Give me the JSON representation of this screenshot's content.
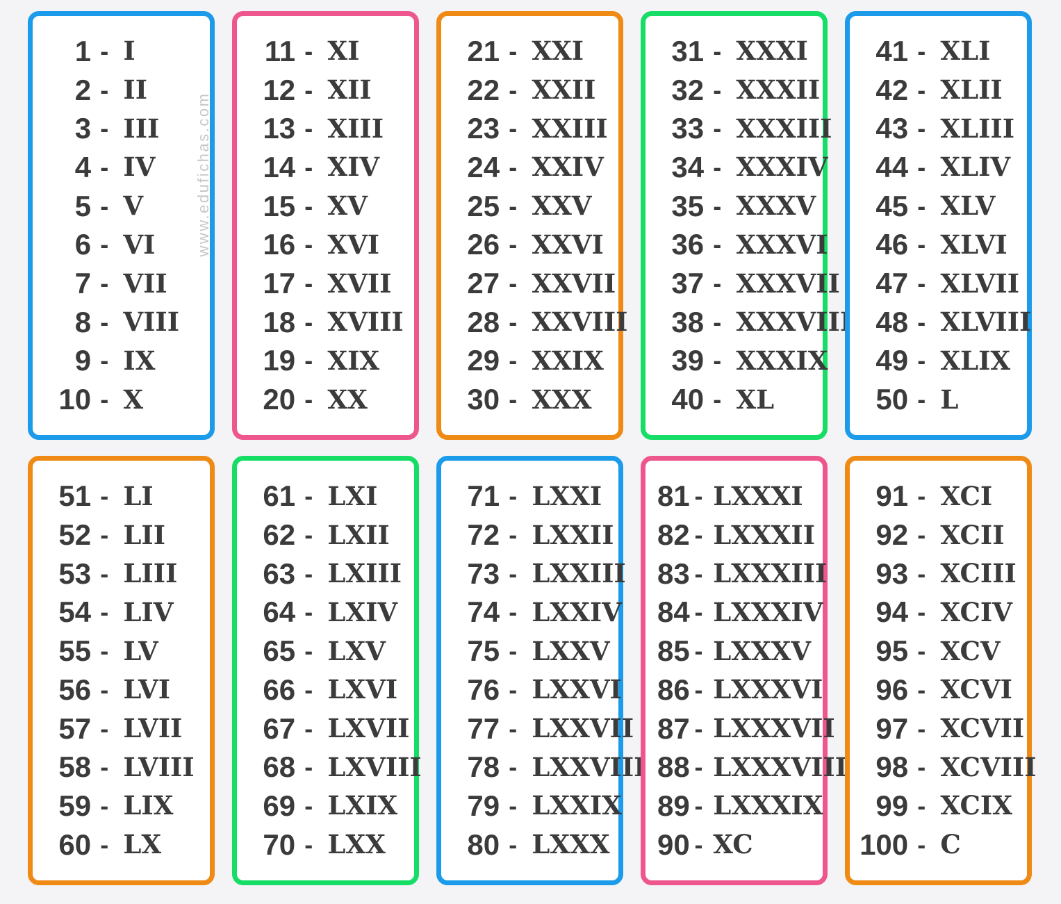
{
  "page": {
    "background": "#f4f4f6",
    "card_background": "#ffffff",
    "text_color": "#3b3b3b",
    "separator": "-",
    "watermark": "www.edufichas.com",
    "watermark_color": "#c7c7c7"
  },
  "palette": {
    "blue": "#1b9be9",
    "pink": "#ee568e",
    "orange": "#ef8a15",
    "green": "#16dd66"
  },
  "boxes": [
    {
      "range": "1-10",
      "color": "blue",
      "tight": false,
      "entries": [
        {
          "number": "1",
          "roman": "I"
        },
        {
          "number": "2",
          "roman": "II"
        },
        {
          "number": "3",
          "roman": "III"
        },
        {
          "number": "4",
          "roman": "IV"
        },
        {
          "number": "5",
          "roman": "V"
        },
        {
          "number": "6",
          "roman": "VI"
        },
        {
          "number": "7",
          "roman": "VII"
        },
        {
          "number": "8",
          "roman": "VIII"
        },
        {
          "number": "9",
          "roman": "IX"
        },
        {
          "number": "10",
          "roman": "X"
        }
      ]
    },
    {
      "range": "11-20",
      "color": "pink",
      "tight": false,
      "entries": [
        {
          "number": "11",
          "roman": "XI"
        },
        {
          "number": "12",
          "roman": "XII"
        },
        {
          "number": "13",
          "roman": "XIII"
        },
        {
          "number": "14",
          "roman": "XIV"
        },
        {
          "number": "15",
          "roman": "XV"
        },
        {
          "number": "16",
          "roman": "XVI"
        },
        {
          "number": "17",
          "roman": "XVII"
        },
        {
          "number": "18",
          "roman": "XVIII"
        },
        {
          "number": "19",
          "roman": "XIX"
        },
        {
          "number": "20",
          "roman": "XX"
        }
      ]
    },
    {
      "range": "21-30",
      "color": "orange",
      "tight": false,
      "entries": [
        {
          "number": "21",
          "roman": "XXI"
        },
        {
          "number": "22",
          "roman": "XXII"
        },
        {
          "number": "23",
          "roman": "XXIII"
        },
        {
          "number": "24",
          "roman": "XXIV"
        },
        {
          "number": "25",
          "roman": "XXV"
        },
        {
          "number": "26",
          "roman": "XXVI"
        },
        {
          "number": "27",
          "roman": "XXVII"
        },
        {
          "number": "28",
          "roman": "XXVIII"
        },
        {
          "number": "29",
          "roman": "XXIX"
        },
        {
          "number": "30",
          "roman": "XXX"
        }
      ]
    },
    {
      "range": "31-40",
      "color": "green",
      "tight": false,
      "entries": [
        {
          "number": "31",
          "roman": "XXXI"
        },
        {
          "number": "32",
          "roman": "XXXII"
        },
        {
          "number": "33",
          "roman": "XXXIII"
        },
        {
          "number": "34",
          "roman": "XXXIV"
        },
        {
          "number": "35",
          "roman": "XXXV"
        },
        {
          "number": "36",
          "roman": "XXXVI"
        },
        {
          "number": "37",
          "roman": "XXXVII"
        },
        {
          "number": "38",
          "roman": "XXXVIII"
        },
        {
          "number": "39",
          "roman": "XXXIX"
        },
        {
          "number": "40",
          "roman": "XL"
        }
      ]
    },
    {
      "range": "41-50",
      "color": "blue",
      "tight": false,
      "entries": [
        {
          "number": "41",
          "roman": "XLI"
        },
        {
          "number": "42",
          "roman": "XLII"
        },
        {
          "number": "43",
          "roman": "XLIII"
        },
        {
          "number": "44",
          "roman": "XLIV"
        },
        {
          "number": "45",
          "roman": "XLV"
        },
        {
          "number": "46",
          "roman": "XLVI"
        },
        {
          "number": "47",
          "roman": "XLVII"
        },
        {
          "number": "48",
          "roman": "XLVIII"
        },
        {
          "number": "49",
          "roman": "XLIX"
        },
        {
          "number": "50",
          "roman": "L"
        }
      ]
    },
    {
      "range": "51-60",
      "color": "orange",
      "tight": false,
      "entries": [
        {
          "number": "51",
          "roman": "LI"
        },
        {
          "number": "52",
          "roman": "LII"
        },
        {
          "number": "53",
          "roman": "LIII"
        },
        {
          "number": "54",
          "roman": "LIV"
        },
        {
          "number": "55",
          "roman": "LV"
        },
        {
          "number": "56",
          "roman": "LVI"
        },
        {
          "number": "57",
          "roman": "LVII"
        },
        {
          "number": "58",
          "roman": "LVIII"
        },
        {
          "number": "59",
          "roman": "LIX"
        },
        {
          "number": "60",
          "roman": "LX"
        }
      ]
    },
    {
      "range": "61-70",
      "color": "green",
      "tight": false,
      "entries": [
        {
          "number": "61",
          "roman": "LXI"
        },
        {
          "number": "62",
          "roman": "LXII"
        },
        {
          "number": "63",
          "roman": "LXIII"
        },
        {
          "number": "64",
          "roman": "LXIV"
        },
        {
          "number": "65",
          "roman": "LXV"
        },
        {
          "number": "66",
          "roman": "LXVI"
        },
        {
          "number": "67",
          "roman": "LXVII"
        },
        {
          "number": "68",
          "roman": "LXVIII"
        },
        {
          "number": "69",
          "roman": "LXIX"
        },
        {
          "number": "70",
          "roman": "LXX"
        }
      ]
    },
    {
      "range": "71-80",
      "color": "blue",
      "tight": false,
      "entries": [
        {
          "number": "71",
          "roman": "LXXI"
        },
        {
          "number": "72",
          "roman": "LXXII"
        },
        {
          "number": "73",
          "roman": "LXXIII"
        },
        {
          "number": "74",
          "roman": "LXXIV"
        },
        {
          "number": "75",
          "roman": "LXXV"
        },
        {
          "number": "76",
          "roman": "LXXVI"
        },
        {
          "number": "77",
          "roman": "LXXVII"
        },
        {
          "number": "78",
          "roman": "LXXVIII"
        },
        {
          "number": "79",
          "roman": "LXXIX"
        },
        {
          "number": "80",
          "roman": "LXXX"
        }
      ]
    },
    {
      "range": "81-90",
      "color": "pink",
      "tight": true,
      "entries": [
        {
          "number": "81",
          "roman": "LXXXI"
        },
        {
          "number": "82",
          "roman": "LXXXII"
        },
        {
          "number": "83",
          "roman": "LXXXIII"
        },
        {
          "number": "84",
          "roman": "LXXXIV"
        },
        {
          "number": "85",
          "roman": "LXXXV"
        },
        {
          "number": "86",
          "roman": "LXXXVI"
        },
        {
          "number": "87",
          "roman": "LXXXVII"
        },
        {
          "number": "88",
          "roman": "LXXXVIII"
        },
        {
          "number": "89",
          "roman": "LXXXIX"
        },
        {
          "number": "90",
          "roman": "XC"
        }
      ]
    },
    {
      "range": "91-100",
      "color": "orange",
      "tight": false,
      "entries": [
        {
          "number": "91",
          "roman": "XCI"
        },
        {
          "number": "92",
          "roman": "XCII"
        },
        {
          "number": "93",
          "roman": "XCIII"
        },
        {
          "number": "94",
          "roman": "XCIV"
        },
        {
          "number": "95",
          "roman": "XCV"
        },
        {
          "number": "96",
          "roman": "XCVI"
        },
        {
          "number": "97",
          "roman": "XCVII"
        },
        {
          "number": "98",
          "roman": "XCVIII"
        },
        {
          "number": "99",
          "roman": "XCIX"
        },
        {
          "number": "100",
          "roman": "C"
        }
      ]
    }
  ]
}
